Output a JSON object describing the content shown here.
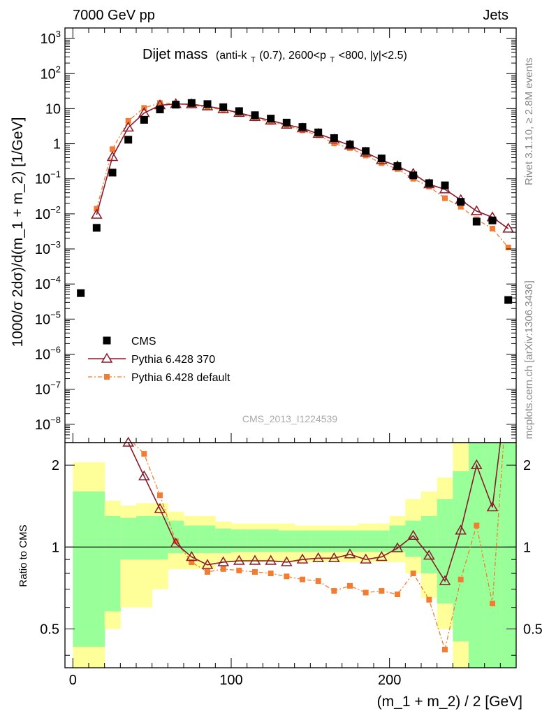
{
  "header": {
    "left": "7000 GeV pp",
    "right": "Jets"
  },
  "side_labels": {
    "rivet": "Rivet 3.1.10, ≥ 2.8M events",
    "mcplots": "mcplots.cern.ch [arXiv:1306.3436]"
  },
  "watermark": "CMS_2013_I1224539",
  "chart_data": {
    "type": "scatter",
    "title": "Dijet mass",
    "subtitle_parts": [
      "(anti-k",
      "T",
      "(0.7), 2600<p",
      "T",
      "<800, |y|<2.5)"
    ],
    "ylabel": "1000/σ 2dσ)/d(m_1 + m_2) [1/GeV]",
    "xlabel": "(m_1 + m_2) / 2 [GeV]",
    "ratio_ylabel": "Ratio to CMS",
    "xlim": [
      -5,
      280
    ],
    "ylim": [
      3e-09,
      2000
    ],
    "yscale": "log",
    "ratio_ylim": [
      0.36,
      2.42
    ],
    "ratio_yscale": "log",
    "x_ticks": [
      0,
      100,
      200
    ],
    "y_ticks": [
      {
        "base": "10",
        "exp": "3"
      },
      {
        "base": "10",
        "exp": "2"
      },
      {
        "base": "10",
        "exp": ""
      },
      {
        "base": "1",
        "exp": ""
      },
      {
        "base": "10",
        "exp": "−1"
      },
      {
        "base": "10",
        "exp": "−2"
      },
      {
        "base": "10",
        "exp": "−3"
      },
      {
        "base": "10",
        "exp": "−4"
      },
      {
        "base": "10",
        "exp": "−5"
      },
      {
        "base": "10",
        "exp": "−6"
      },
      {
        "base": "10",
        "exp": "−7"
      },
      {
        "base": "10",
        "exp": "−8"
      }
    ],
    "ratio_ticks": [
      "0.5",
      "1",
      "2"
    ],
    "legend_position": "lower-left",
    "series": [
      {
        "name": "CMS",
        "color": "#000000",
        "marker": "square",
        "x": [
          5,
          15,
          25,
          35,
          45,
          55,
          65,
          75,
          85,
          95,
          105,
          115,
          125,
          135,
          145,
          155,
          165,
          175,
          185,
          195,
          205,
          215,
          225,
          235,
          245,
          255,
          265,
          275
        ],
        "y": [
          5.5e-05,
          0.004,
          0.15,
          1.3,
          4.8,
          9.5,
          13,
          14.5,
          13.5,
          11,
          8.5,
          6.5,
          5.2,
          4,
          3,
          2.1,
          1.45,
          0.95,
          0.62,
          0.38,
          0.23,
          0.125,
          0.075,
          0.065,
          0.022,
          0.006,
          0.0065,
          3.5e-05
        ]
      },
      {
        "name": "Pythia 6.428 370",
        "color": "#8b1a2b",
        "marker": "triangle",
        "x": [
          15,
          25,
          35,
          45,
          55,
          65,
          75,
          85,
          95,
          105,
          115,
          125,
          135,
          145,
          155,
          165,
          175,
          185,
          195,
          205,
          215,
          225,
          235,
          245,
          255,
          265,
          275
        ],
        "y": [
          0.0095,
          0.42,
          2.9,
          7.5,
          12.5,
          13.6,
          13.4,
          11.7,
          9.7,
          7.6,
          5.8,
          4.6,
          3.5,
          2.75,
          1.92,
          1.32,
          0.9,
          0.56,
          0.34,
          0.23,
          0.14,
          0.07,
          0.05,
          0.025,
          0.012,
          0.008,
          0.0038
        ]
      },
      {
        "name": "Pythia 6.428 default",
        "color": "#f47c30",
        "marker": "small-square",
        "x": [
          15,
          25,
          35,
          45,
          55,
          65,
          75,
          85,
          95,
          105,
          115,
          125,
          135,
          145,
          155,
          165,
          175,
          185,
          195,
          205,
          215,
          225,
          235,
          245,
          255,
          265,
          275
        ],
        "y": [
          0.014,
          0.7,
          4.5,
          10.5,
          14.5,
          14,
          12.6,
          11,
          9.2,
          7.1,
          5.3,
          4.2,
          3.3,
          2.4,
          1.75,
          1.02,
          0.75,
          0.46,
          0.28,
          0.19,
          0.1,
          0.06,
          0.028,
          0.016,
          0.007,
          0.0038,
          0.0011
        ]
      }
    ],
    "ratio_series": [
      {
        "name": "Pythia 6.428 370",
        "x": [
          35,
          45,
          55,
          65,
          75,
          85,
          95,
          105,
          115,
          125,
          135,
          145,
          155,
          165,
          175,
          185,
          195,
          205,
          215,
          225,
          235,
          245,
          255,
          265
        ],
        "y": [
          2.42,
          1.82,
          1.38,
          1.03,
          0.92,
          0.86,
          0.88,
          0.89,
          0.89,
          0.89,
          0.88,
          0.9,
          0.91,
          0.91,
          0.94,
          0.9,
          0.92,
          0.99,
          1.1,
          0.93,
          0.75,
          1.15,
          2.0,
          1.4
        ]
      },
      {
        "name": "Pythia 6.428 default",
        "x": [
          45,
          55,
          65,
          75,
          85,
          95,
          105,
          115,
          125,
          135,
          145,
          155,
          165,
          175,
          185,
          195,
          205,
          215,
          225,
          235,
          245,
          255,
          265
        ],
        "y": [
          2.2,
          1.55,
          1.05,
          0.88,
          0.81,
          0.83,
          0.82,
          0.81,
          0.8,
          0.78,
          0.76,
          0.75,
          0.69,
          0.72,
          0.68,
          0.69,
          0.67,
          0.8,
          0.64,
          0.42,
          0.76,
          1.2,
          0.62
        ]
      }
    ],
    "ratio_bands": {
      "x_edges": [
        0,
        10,
        20,
        30,
        40,
        50,
        60,
        70,
        80,
        90,
        100,
        110,
        120,
        130,
        140,
        150,
        160,
        170,
        180,
        190,
        200,
        210,
        220,
        230,
        240,
        250,
        260,
        270,
        280
      ],
      "green_lo": [
        0.43,
        0.43,
        0.58,
        0.9,
        0.9,
        0.9,
        0.95,
        0.95,
        0.95,
        0.95,
        0.96,
        0.96,
        0.96,
        0.96,
        0.96,
        0.96,
        0.96,
        0.96,
        0.96,
        0.96,
        0.96,
        0.92,
        0.8,
        0.62,
        0.45,
        0.36,
        0.36,
        0.36
      ],
      "green_hi": [
        1.6,
        1.6,
        1.3,
        1.28,
        1.3,
        1.3,
        1.25,
        1.2,
        1.2,
        1.17,
        1.16,
        1.16,
        1.16,
        1.15,
        1.15,
        1.15,
        1.15,
        1.15,
        1.15,
        1.15,
        1.2,
        1.25,
        1.3,
        1.5,
        1.9,
        2.42,
        2.42,
        2.42
      ],
      "yellow_lo": [
        0.36,
        0.36,
        0.5,
        0.6,
        0.6,
        0.7,
        0.83,
        0.83,
        0.83,
        0.88,
        0.88,
        0.88,
        0.88,
        0.88,
        0.88,
        0.88,
        0.88,
        0.88,
        0.88,
        0.88,
        0.88,
        0.8,
        0.65,
        0.5,
        0.36,
        0.36,
        0.36,
        0.36
      ],
      "yellow_hi": [
        2.05,
        2.05,
        1.48,
        1.42,
        1.45,
        1.45,
        1.35,
        1.3,
        1.3,
        1.24,
        1.22,
        1.22,
        1.22,
        1.22,
        1.2,
        1.2,
        1.2,
        1.2,
        1.22,
        1.22,
        1.3,
        1.5,
        1.6,
        1.8,
        2.42,
        2.42,
        2.42,
        2.42
      ]
    }
  }
}
